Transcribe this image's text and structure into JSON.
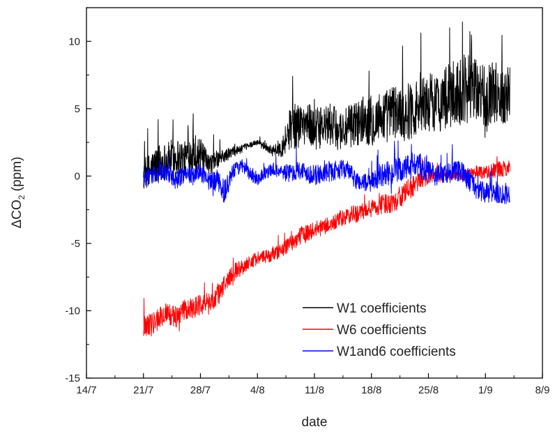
{
  "chart_data": {
    "type": "line",
    "title": "",
    "xlabel": "date",
    "ylabel_main": "ΔCO",
    "ylabel_sub": "2",
    "ylabel_rest": " (ppm)",
    "x_ticks": [
      "14/7",
      "21/7",
      "28/7",
      "4/8",
      "11/8",
      "18/8",
      "25/8",
      "1/9",
      "8/9"
    ],
    "y_ticks": [
      "-15",
      "-10",
      "-5",
      "0",
      "5",
      "10"
    ],
    "xlim_days": [
      0,
      56
    ],
    "ylim": [
      -15,
      12.5
    ],
    "grid": false,
    "legend_position": "bottom-right",
    "series": [
      {
        "name": "W1 coefficients",
        "color": "#000000",
        "x_days": [
          7.0,
          8.0,
          9.0,
          10.0,
          11.0,
          12.0,
          13.0,
          14.0,
          15.0,
          16.0,
          17.0,
          18.0,
          19.0,
          20.0,
          21.0,
          22.0,
          23.0,
          24.0,
          25.0,
          26.0,
          27.0,
          28.0,
          29.0,
          30.0,
          31.0,
          32.0,
          33.0,
          34.0,
          35.0,
          36.0,
          37.0,
          38.0,
          39.0,
          40.0,
          41.0,
          42.0,
          43.0,
          44.0,
          45.0,
          46.0,
          47.0,
          48.0,
          49.0,
          50.0,
          51.0,
          52.0
        ],
        "y": [
          0.0,
          0.5,
          1.0,
          1.2,
          1.5,
          1.3,
          1.8,
          1.5,
          0.8,
          1.2,
          1.5,
          1.8,
          2.0,
          2.3,
          2.5,
          2.2,
          1.8,
          2.2,
          3.5,
          3.8,
          4.0,
          3.5,
          3.6,
          3.8,
          3.4,
          3.5,
          3.9,
          4.2,
          4.0,
          4.4,
          4.5,
          4.8,
          4.6,
          5.0,
          5.2,
          5.5,
          5.4,
          5.8,
          6.0,
          6.3,
          6.5,
          6.2,
          6.0,
          6.3,
          6.0,
          6.2
        ],
        "amplitude": [
          1.2,
          1.4,
          1.5,
          1.3,
          1.5,
          1.2,
          1.6,
          1.3,
          0.8,
          0.7,
          0.5,
          0.4,
          0.3,
          0.2,
          0.2,
          0.3,
          0.4,
          0.8,
          1.6,
          1.7,
          1.6,
          1.6,
          1.5,
          1.6,
          1.5,
          1.6,
          1.7,
          1.8,
          1.8,
          1.9,
          2.0,
          2.0,
          2.1,
          2.2,
          2.2,
          2.2,
          2.3,
          2.4,
          2.5,
          2.6,
          2.5,
          2.4,
          2.4,
          2.3,
          2.3,
          2.2
        ]
      },
      {
        "name": "W6 coefficients",
        "color": "#ff0000",
        "x_days": [
          7.0,
          8.0,
          9.0,
          10.0,
          11.0,
          12.0,
          13.0,
          14.0,
          15.0,
          16.0,
          17.0,
          18.0,
          19.0,
          20.0,
          21.0,
          22.0,
          23.0,
          24.0,
          25.0,
          26.0,
          27.0,
          28.0,
          29.0,
          30.0,
          31.0,
          32.0,
          33.0,
          34.0,
          35.0,
          36.0,
          37.0,
          38.0,
          39.0,
          40.0,
          41.0,
          42.0,
          43.0,
          44.0,
          45.0,
          46.0,
          47.0,
          48.0,
          49.0,
          50.0,
          51.0,
          52.0
        ],
        "y": [
          -11.0,
          -11.0,
          -10.5,
          -10.2,
          -10.5,
          -10.0,
          -9.8,
          -9.5,
          -9.5,
          -9.0,
          -8.0,
          -7.2,
          -6.8,
          -6.4,
          -6.1,
          -6.0,
          -5.8,
          -5.5,
          -5.0,
          -4.6,
          -4.2,
          -4.0,
          -3.8,
          -3.6,
          -3.3,
          -3.0,
          -2.8,
          -2.7,
          -2.4,
          -2.2,
          -2.0,
          -1.8,
          -1.3,
          -0.8,
          -0.4,
          0.0,
          0.0,
          0.0,
          0.0,
          0.0,
          0.2,
          0.3,
          0.3,
          0.4,
          0.5,
          0.6
        ],
        "amplitude": [
          0.9,
          0.9,
          0.8,
          0.8,
          0.8,
          0.8,
          0.8,
          0.8,
          0.8,
          0.8,
          0.8,
          0.7,
          0.6,
          0.5,
          0.5,
          0.5,
          0.5,
          0.5,
          0.6,
          0.7,
          0.7,
          0.6,
          0.6,
          0.6,
          0.6,
          0.6,
          0.7,
          0.7,
          0.7,
          0.7,
          0.8,
          0.8,
          0.8,
          0.8,
          0.7,
          0.6,
          0.5,
          0.4,
          0.3,
          0.3,
          0.4,
          0.5,
          0.5,
          0.6,
          0.6,
          0.6
        ]
      },
      {
        "name": "W1and6 coefficients",
        "color": "#0000ff",
        "x_days": [
          7.0,
          8.0,
          9.0,
          10.0,
          11.0,
          12.0,
          13.0,
          14.0,
          15.0,
          16.0,
          17.0,
          18.0,
          19.0,
          20.0,
          21.0,
          22.0,
          23.0,
          24.0,
          25.0,
          26.0,
          27.0,
          28.0,
          29.0,
          30.0,
          31.0,
          32.0,
          33.0,
          34.0,
          35.0,
          36.0,
          37.0,
          38.0,
          39.0,
          40.0,
          41.0,
          42.0,
          43.0,
          44.0,
          45.0,
          46.0,
          47.0,
          48.0,
          49.0,
          50.0,
          51.0,
          52.0
        ],
        "y": [
          0.0,
          0.0,
          0.3,
          0.2,
          -0.3,
          0.2,
          0.0,
          0.3,
          -0.5,
          -0.3,
          -1.2,
          0.3,
          0.8,
          0.2,
          -0.2,
          0.3,
          0.5,
          0.3,
          0.2,
          0.5,
          0.3,
          0.0,
          0.2,
          0.3,
          0.5,
          0.5,
          -0.3,
          -0.5,
          -0.5,
          0.0,
          0.2,
          0.3,
          0.5,
          0.8,
          0.7,
          0.3,
          0.0,
          0.2,
          0.3,
          0.3,
          -0.3,
          -1.0,
          -1.3,
          -1.2,
          -1.3,
          -1.3
        ],
        "amplitude": [
          0.8,
          0.7,
          0.6,
          0.7,
          0.7,
          0.7,
          0.7,
          0.6,
          0.7,
          0.8,
          0.9,
          0.6,
          0.5,
          0.5,
          0.5,
          0.5,
          0.5,
          0.6,
          0.7,
          0.7,
          0.7,
          0.8,
          0.7,
          0.7,
          0.7,
          0.7,
          0.7,
          0.7,
          0.7,
          0.8,
          0.9,
          1.0,
          1.0,
          1.0,
          1.0,
          0.9,
          0.8,
          0.8,
          0.8,
          0.8,
          0.8,
          0.8,
          0.8,
          0.8,
          0.8,
          0.8
        ]
      }
    ]
  }
}
